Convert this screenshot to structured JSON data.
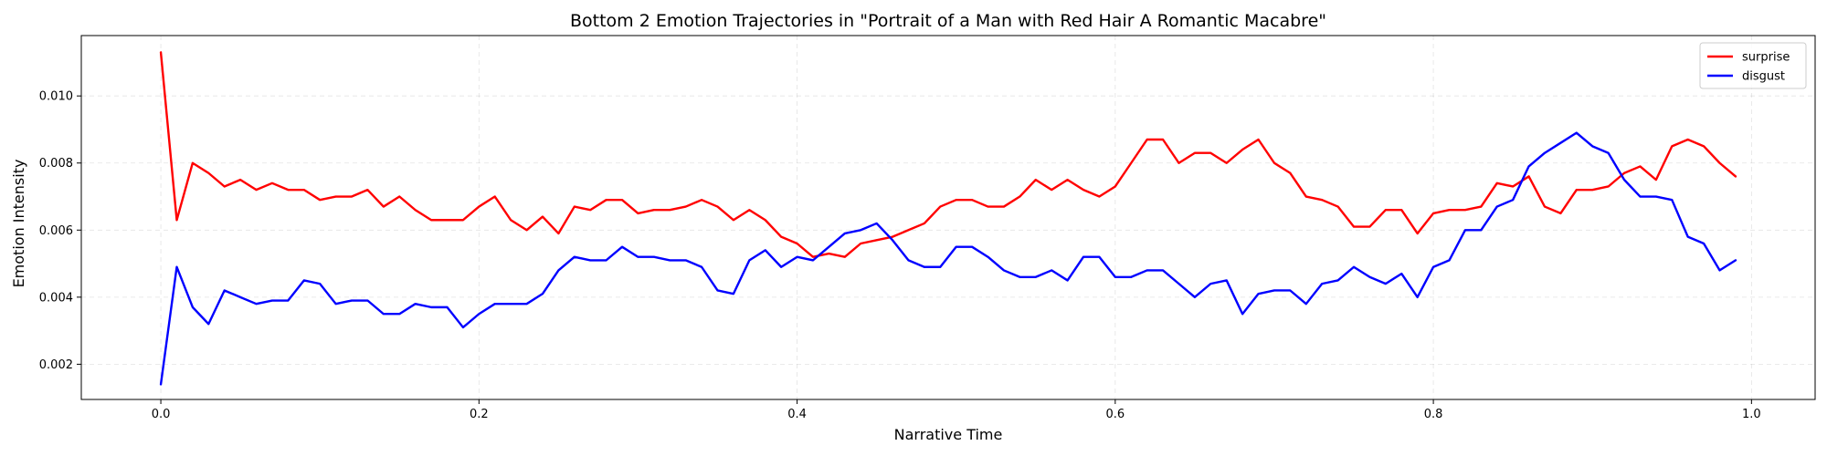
{
  "chart_data": {
    "type": "line",
    "title": "Bottom 2 Emotion Trajectories in \"Portrait of a Man with Red Hair A Romantic Macabre\"",
    "xlabel": "Narrative Time",
    "ylabel": "Emotion Intensity",
    "xlim": [
      -0.05,
      1.04
    ],
    "ylim": [
      0.00095,
      0.0118
    ],
    "xticks": [
      0.0,
      0.2,
      0.4,
      0.6,
      0.8,
      1.0
    ],
    "xtick_labels": [
      "0.0",
      "0.2",
      "0.4",
      "0.6",
      "0.8",
      "1.0"
    ],
    "yticks": [
      0.002,
      0.004,
      0.006,
      0.008,
      0.01
    ],
    "ytick_labels": [
      "0.002",
      "0.004",
      "0.006",
      "0.008",
      "0.010"
    ],
    "grid": true,
    "legend_position": "top-right",
    "x": [
      0.0,
      0.01,
      0.02,
      0.03,
      0.04,
      0.05,
      0.06,
      0.07,
      0.08,
      0.09,
      0.1,
      0.11,
      0.12,
      0.13,
      0.14,
      0.15,
      0.16,
      0.17,
      0.18,
      0.19,
      0.2,
      0.21,
      0.22,
      0.23,
      0.24,
      0.25,
      0.26,
      0.27,
      0.28,
      0.29,
      0.3,
      0.31,
      0.32,
      0.33,
      0.34,
      0.35,
      0.36,
      0.37,
      0.38,
      0.39,
      0.4,
      0.41,
      0.42,
      0.43,
      0.44,
      0.45,
      0.46,
      0.47,
      0.48,
      0.49,
      0.5,
      0.51,
      0.52,
      0.53,
      0.54,
      0.55,
      0.56,
      0.57,
      0.58,
      0.59,
      0.6,
      0.61,
      0.62,
      0.63,
      0.64,
      0.65,
      0.66,
      0.67,
      0.68,
      0.69,
      0.7,
      0.71,
      0.72,
      0.73,
      0.74,
      0.75,
      0.76,
      0.77,
      0.78,
      0.79,
      0.8,
      0.81,
      0.82,
      0.83,
      0.84,
      0.85,
      0.86,
      0.87,
      0.88,
      0.89,
      0.9,
      0.91,
      0.92,
      0.93,
      0.94,
      0.95,
      0.96,
      0.97,
      0.98,
      0.99
    ],
    "series": [
      {
        "name": "surprise",
        "color": "#ff0000",
        "values": [
          0.0113,
          0.0063,
          0.008,
          0.0077,
          0.0073,
          0.0075,
          0.0072,
          0.0074,
          0.0072,
          0.0072,
          0.0069,
          0.007,
          0.007,
          0.0072,
          0.0067,
          0.007,
          0.0066,
          0.0063,
          0.0063,
          0.0063,
          0.0067,
          0.007,
          0.0063,
          0.006,
          0.0064,
          0.0059,
          0.0067,
          0.0066,
          0.0069,
          0.0069,
          0.0065,
          0.0066,
          0.0066,
          0.0067,
          0.0069,
          0.0067,
          0.0063,
          0.0066,
          0.0063,
          0.0058,
          0.0056,
          0.0052,
          0.0053,
          0.0052,
          0.0056,
          0.0057,
          0.0058,
          0.006,
          0.0062,
          0.0067,
          0.0069,
          0.0069,
          0.0067,
          0.0067,
          0.007,
          0.0075,
          0.0072,
          0.0075,
          0.0072,
          0.007,
          0.0073,
          0.008,
          0.0087,
          0.0087,
          0.008,
          0.0083,
          0.0083,
          0.008,
          0.0084,
          0.0087,
          0.008,
          0.0077,
          0.007,
          0.0069,
          0.0067,
          0.0061,
          0.0061,
          0.0066,
          0.0066,
          0.0059,
          0.0065,
          0.0066,
          0.0066,
          0.0067,
          0.0074,
          0.0073,
          0.0076,
          0.0067,
          0.0065,
          0.0072,
          0.0072,
          0.0073,
          0.0077,
          0.0079,
          0.0075,
          0.0085,
          0.0087,
          0.0085,
          0.008,
          0.0076
        ]
      },
      {
        "name": "disgust",
        "color": "#0000ff",
        "values": [
          0.0014,
          0.0049,
          0.0037,
          0.0032,
          0.0042,
          0.004,
          0.0038,
          0.0039,
          0.0039,
          0.0045,
          0.0044,
          0.0038,
          0.0039,
          0.0039,
          0.0035,
          0.0035,
          0.0038,
          0.0037,
          0.0037,
          0.0031,
          0.0035,
          0.0038,
          0.0038,
          0.0038,
          0.0041,
          0.0048,
          0.0052,
          0.0051,
          0.0051,
          0.0055,
          0.0052,
          0.0052,
          0.0051,
          0.0051,
          0.0049,
          0.0042,
          0.0041,
          0.0051,
          0.0054,
          0.0049,
          0.0052,
          0.0051,
          0.0055,
          0.0059,
          0.006,
          0.0062,
          0.0057,
          0.0051,
          0.0049,
          0.0049,
          0.0055,
          0.0055,
          0.0052,
          0.0048,
          0.0046,
          0.0046,
          0.0048,
          0.0045,
          0.0052,
          0.0052,
          0.0046,
          0.0046,
          0.0048,
          0.0048,
          0.0044,
          0.004,
          0.0044,
          0.0045,
          0.0035,
          0.0041,
          0.0042,
          0.0042,
          0.0038,
          0.0044,
          0.0045,
          0.0049,
          0.0046,
          0.0044,
          0.0047,
          0.004,
          0.0049,
          0.0051,
          0.006,
          0.006,
          0.0067,
          0.0069,
          0.0079,
          0.0083,
          0.0086,
          0.0089,
          0.0085,
          0.0083,
          0.0075,
          0.007,
          0.007,
          0.0069,
          0.0058,
          0.0056,
          0.0048,
          0.0051
        ]
      }
    ]
  }
}
